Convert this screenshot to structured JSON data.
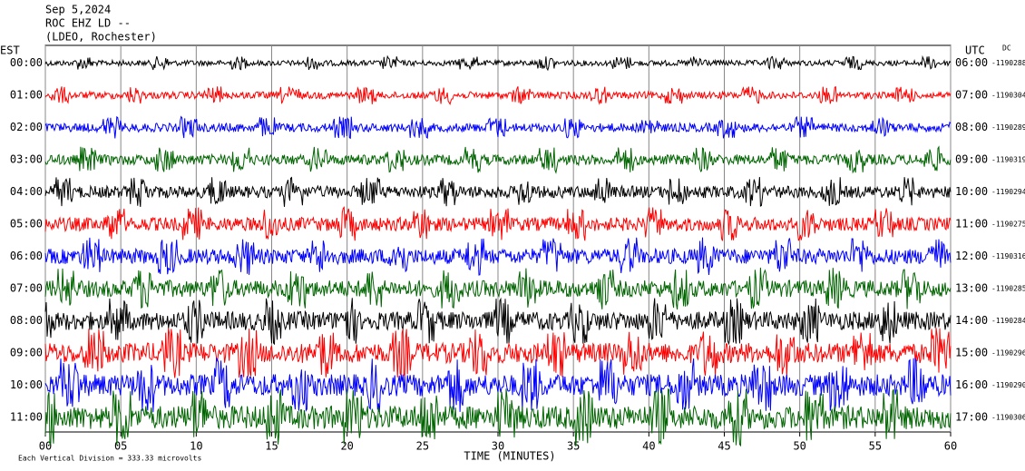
{
  "header": {
    "date": "Sep 5,2024",
    "station": "ROC EHZ LD --",
    "network": "(LDEO, Rochester)"
  },
  "axes": {
    "left_label": "EST",
    "right_label": "UTC",
    "dc_label": "DC",
    "x_title": "TIME (MINUTES)",
    "xlim": [
      0,
      60
    ],
    "xticks": [
      {
        "value": 0,
        "label": "00"
      },
      {
        "value": 5,
        "label": "05"
      },
      10,
      15,
      20,
      25,
      30,
      35,
      40,
      45,
      50,
      55,
      60
    ],
    "scale_note": "Each Vertical Division =  333.33 microvolts"
  },
  "colors": [
    "#000000",
    "#ff0000",
    "#0000ff",
    "#006400"
  ],
  "rows": [
    {
      "est": "00:00",
      "utc": "06:00",
      "dc": "-1190288"
    },
    {
      "est": "01:00",
      "utc": "07:00",
      "dc": "-1190304"
    },
    {
      "est": "02:00",
      "utc": "08:00",
      "dc": "-1190289"
    },
    {
      "est": "03:00",
      "utc": "09:00",
      "dc": "-1190319"
    },
    {
      "est": "04:00",
      "utc": "10:00",
      "dc": "-1190294"
    },
    {
      "est": "05:00",
      "utc": "11:00",
      "dc": "-1190275"
    },
    {
      "est": "06:00",
      "utc": "12:00",
      "dc": "-1190316"
    },
    {
      "est": "07:00",
      "utc": "13:00",
      "dc": "-1190285"
    },
    {
      "est": "08:00",
      "utc": "14:00",
      "dc": "-1190284"
    },
    {
      "est": "09:00",
      "utc": "15:00",
      "dc": "-1190296"
    },
    {
      "est": "10:00",
      "utc": "16:00",
      "dc": "-1190290"
    },
    {
      "est": "11:00",
      "utc": "17:00",
      "dc": "-1190306"
    }
  ]
}
